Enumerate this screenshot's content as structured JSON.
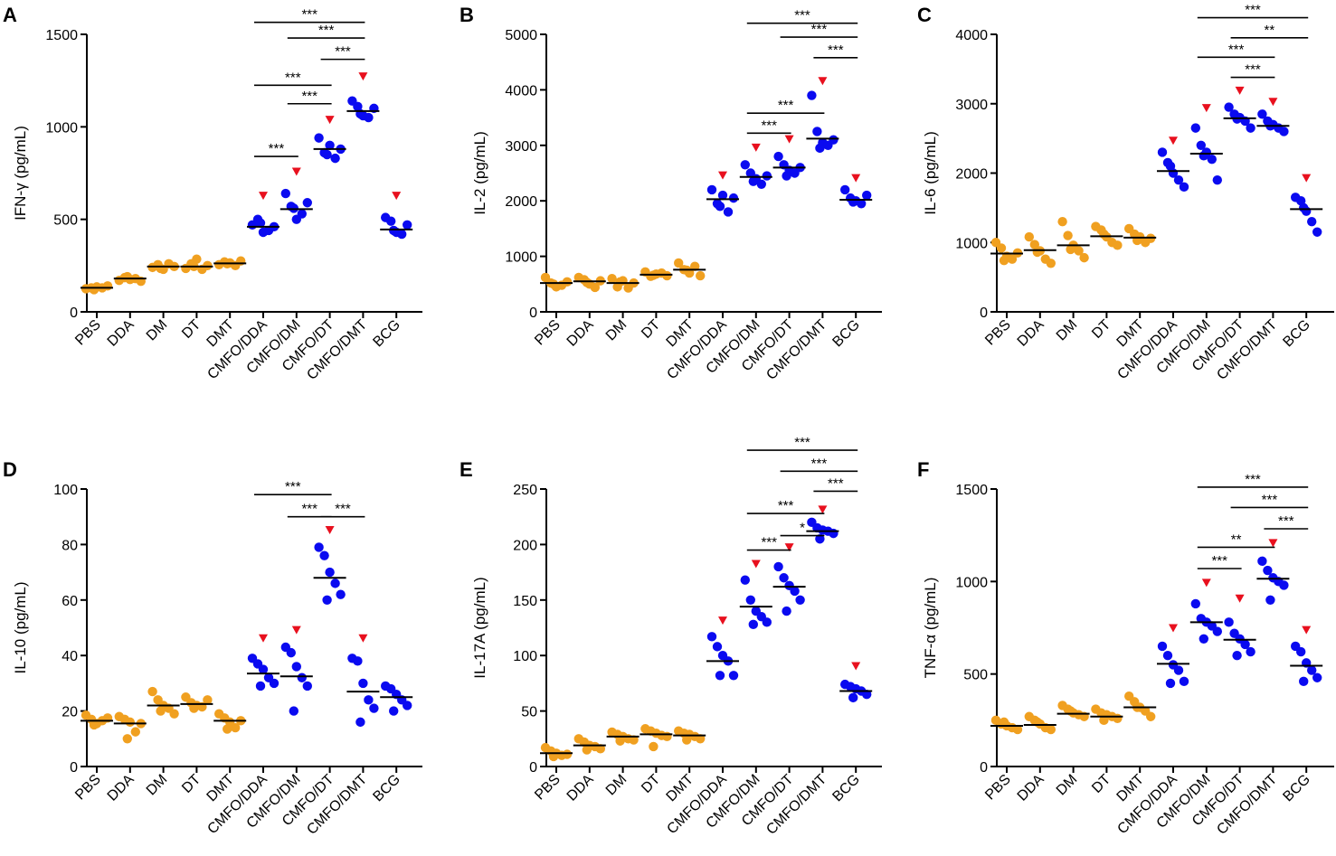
{
  "colors": {
    "adjuvant_only": "#F0A020",
    "vaccine": "#0A0AF0",
    "marker": "#E8101E",
    "axis": "#000000"
  },
  "chart_data": [
    {
      "type": "scatter",
      "panel": "A",
      "ylabel": "IFN-γ (pg/mL)",
      "ylim": [
        0,
        1500
      ],
      "yticks": [
        0,
        500,
        1000,
        1500
      ],
      "categories": [
        "PBS",
        "DDA",
        "DM",
        "DT",
        "DMT",
        "CMFO/DDA",
        "CMFO/DM",
        "CMFO/DT",
        "CMFO/DMT",
        "BCG"
      ],
      "points": [
        [
          125,
          130,
          135,
          130,
          140,
          120
        ],
        [
          170,
          185,
          175,
          180,
          165,
          190
        ],
        [
          240,
          255,
          230,
          260,
          245,
          235
        ],
        [
          235,
          260,
          285,
          230,
          250,
          245
        ],
        [
          255,
          270,
          265,
          250,
          275,
          260
        ],
        [
          470,
          500,
          430,
          440,
          460,
          480
        ],
        [
          640,
          570,
          500,
          530,
          590,
          560
        ],
        [
          940,
          860,
          900,
          830,
          880,
          850
        ],
        [
          1140,
          1110,
          1060,
          1050,
          1100,
          1070
        ],
        [
          510,
          490,
          430,
          420,
          470,
          440
        ]
      ],
      "medians": [
        130,
        180,
        245,
        245,
        262,
        460,
        555,
        880,
        1085,
        445
      ],
      "markers": [
        5,
        6,
        7,
        8,
        9
      ],
      "marker_values": [
        625,
        755,
        1035,
        1270,
        625
      ],
      "significance": [
        {
          "from": 5,
          "to": 8,
          "y": 1565,
          "label": "***"
        },
        {
          "from": 6,
          "to": 8,
          "y": 1480,
          "label": "***"
        },
        {
          "from": 7,
          "to": 8,
          "y": 1365,
          "label": "***"
        },
        {
          "from": 5,
          "to": 7,
          "y": 1225,
          "label": "***"
        },
        {
          "from": 6,
          "to": 7,
          "y": 1125,
          "label": "***"
        },
        {
          "from": 5,
          "to": 6,
          "y": 840,
          "label": "***"
        }
      ]
    },
    {
      "type": "scatter",
      "panel": "B",
      "ylabel": "IL-2 (pg/mL)",
      "ylim": [
        0,
        5000
      ],
      "yticks": [
        0,
        1000,
        2000,
        3000,
        4000,
        5000
      ],
      "categories": [
        "PBS",
        "DDA",
        "DM",
        "DT",
        "DMT",
        "CMFO/DDA",
        "CMFO/DM",
        "CMFO/DT",
        "CMFO/DMT",
        "BCG"
      ],
      "points": [
        [
          620,
          520,
          450,
          480,
          540,
          500
        ],
        [
          620,
          580,
          500,
          440,
          560,
          530
        ],
        [
          600,
          450,
          560,
          430,
          520,
          540
        ],
        [
          720,
          640,
          680,
          700,
          650,
          660
        ],
        [
          880,
          760,
          700,
          820,
          650,
          750
        ],
        [
          2200,
          1950,
          2100,
          1800,
          2050,
          1900
        ],
        [
          2650,
          2500,
          2400,
          2300,
          2450,
          2350
        ],
        [
          2800,
          2650,
          2550,
          2500,
          2600,
          2450
        ],
        [
          3900,
          3250,
          3050,
          3000,
          3100,
          2950
        ],
        [
          2200,
          2050,
          2000,
          1950,
          2100,
          1980
        ]
      ],
      "medians": [
        520,
        550,
        520,
        670,
        760,
        2030,
        2430,
        2600,
        3120,
        2020
      ],
      "markers": [
        5,
        6,
        7,
        8,
        9
      ],
      "marker_values": [
        2450,
        2950,
        3100,
        4150,
        2400
      ],
      "significance": [
        {
          "from": 6,
          "to": 9,
          "y": 5200,
          "label": "***"
        },
        {
          "from": 7,
          "to": 9,
          "y": 4950,
          "label": "***"
        },
        {
          "from": 8,
          "to": 9,
          "y": 4580,
          "label": "***"
        },
        {
          "from": 6,
          "to": 8,
          "y": 3580,
          "label": "***"
        },
        {
          "from": 6,
          "to": 7,
          "y": 3220,
          "label": "***"
        }
      ]
    },
    {
      "type": "scatter",
      "panel": "C",
      "ylabel": "IL-6 (pg/mL)",
      "ylim": [
        0,
        4000
      ],
      "yticks": [
        0,
        1000,
        2000,
        3000,
        4000
      ],
      "categories": [
        "PBS",
        "DDA",
        "DM",
        "DT",
        "DMT",
        "CMFO/DDA",
        "CMFO/DM",
        "CMFO/DT",
        "CMFO/DMT",
        "BCG"
      ],
      "points": [
        [
          1000,
          920,
          800,
          760,
          850,
          740
        ],
        [
          1080,
          970,
          880,
          760,
          700,
          860
        ],
        [
          1300,
          1100,
          960,
          880,
          780,
          900
        ],
        [
          1230,
          1180,
          1080,
          1000,
          960,
          1120
        ],
        [
          1200,
          1120,
          1080,
          1000,
          1060,
          1030
        ],
        [
          2300,
          2150,
          2000,
          1900,
          1800,
          2100
        ],
        [
          2650,
          2400,
          2300,
          2200,
          1900,
          2250
        ],
        [
          2950,
          2850,
          2800,
          2750,
          2650,
          2780
        ],
        [
          2850,
          2750,
          2700,
          2650,
          2600,
          2680
        ],
        [
          1650,
          1600,
          1450,
          1300,
          1150,
          1500
        ]
      ],
      "medians": [
        840,
        890,
        960,
        1090,
        1070,
        2030,
        2280,
        2790,
        2680,
        1480
      ],
      "markers": [
        5,
        6,
        7,
        8,
        9
      ],
      "marker_values": [
        2460,
        2930,
        3180,
        3020,
        1920
      ],
      "significance": [
        {
          "from": 6,
          "to": 9,
          "y": 4240,
          "label": "***"
        },
        {
          "from": 7,
          "to": 9,
          "y": 3950,
          "label": "**"
        },
        {
          "from": 6,
          "to": 8,
          "y": 3670,
          "label": "***"
        },
        {
          "from": 7,
          "to": 8,
          "y": 3380,
          "label": "***"
        }
      ]
    },
    {
      "type": "scatter",
      "panel": "D",
      "ylabel": "IL-10 (pg/mL)",
      "ylim": [
        0,
        100
      ],
      "yticks": [
        0,
        20,
        40,
        60,
        80,
        100
      ],
      "categories": [
        "PBS",
        "DDA",
        "DM",
        "DT",
        "DMT",
        "CMFO/DDA",
        "CMFO/DM",
        "CMFO/DT",
        "CMFO/DMT",
        "BCG"
      ],
      "points": [
        [
          18.5,
          17,
          15.5,
          16.5,
          17.5,
          15
        ],
        [
          18,
          17,
          16,
          12.5,
          15.5,
          10
        ],
        [
          27,
          24,
          22,
          21,
          19,
          20
        ],
        [
          25,
          23,
          22,
          21.5,
          24,
          21
        ],
        [
          19,
          17.5,
          16,
          14,
          16.5,
          13.5
        ],
        [
          39,
          37,
          35,
          32,
          30,
          29
        ],
        [
          43,
          41,
          36,
          32,
          29,
          20
        ],
        [
          79,
          76,
          70,
          66,
          62,
          60
        ],
        [
          39,
          38,
          30,
          24,
          21,
          16
        ],
        [
          29,
          28,
          26,
          24,
          22,
          20
        ]
      ],
      "medians": [
        16.5,
        15.5,
        22,
        22.5,
        16.5,
        33.5,
        32.5,
        68,
        27,
        25
      ],
      "markers": [
        5,
        6,
        7,
        8
      ],
      "marker_values": [
        46,
        49,
        85,
        46
      ],
      "significance": [
        {
          "from": 5,
          "to": 7,
          "y": 98,
          "label": "***"
        },
        {
          "from": 6,
          "to": 7,
          "y": 90,
          "label": "***"
        },
        {
          "from": 7,
          "to": 8,
          "y": 90,
          "label": "***"
        }
      ]
    },
    {
      "type": "scatter",
      "panel": "E",
      "ylabel": "IL-17A (pg/mL)",
      "ylim": [
        0,
        250
      ],
      "yticks": [
        0,
        50,
        100,
        150,
        200,
        250
      ],
      "categories": [
        "PBS",
        "DDA",
        "DM",
        "DT",
        "DMT",
        "CMFO/DDA",
        "CMFO/DM",
        "CMFO/DT",
        "CMFO/DMT",
        "BCG"
      ],
      "points": [
        [
          17,
          14,
          12,
          10,
          11,
          9
        ],
        [
          25,
          22,
          19,
          18,
          16,
          15
        ],
        [
          31,
          29,
          27,
          25,
          24,
          23
        ],
        [
          34,
          32,
          30,
          28,
          27,
          18
        ],
        [
          32,
          30,
          29,
          27,
          25,
          24
        ],
        [
          117,
          108,
          100,
          95,
          82,
          82
        ],
        [
          168,
          150,
          140,
          135,
          130,
          128
        ],
        [
          180,
          170,
          163,
          158,
          150,
          140
        ],
        [
          220,
          215,
          213,
          212,
          210,
          205
        ],
        [
          74,
          72,
          70,
          68,
          65,
          62
        ]
      ],
      "medians": [
        12,
        19,
        27,
        29,
        28,
        95,
        144,
        162,
        212,
        68
      ],
      "markers": [
        5,
        6,
        7,
        8,
        9
      ],
      "marker_values": [
        131,
        182,
        197,
        231,
        90
      ],
      "significance": [
        {
          "from": 6,
          "to": 9,
          "y": 285,
          "label": "***"
        },
        {
          "from": 7,
          "to": 9,
          "y": 266,
          "label": "***"
        },
        {
          "from": 8,
          "to": 9,
          "y": 248,
          "label": "***"
        },
        {
          "from": 6,
          "to": 8,
          "y": 228,
          "label": "***"
        },
        {
          "from": 7,
          "to": 8,
          "y": 208,
          "label": "*"
        },
        {
          "from": 6,
          "to": 7,
          "y": 195,
          "label": "***"
        }
      ]
    },
    {
      "type": "scatter",
      "panel": "F",
      "ylabel": "TNF-α (pg/mL)",
      "ylim": [
        0,
        1500
      ],
      "yticks": [
        0,
        500,
        1000,
        1500
      ],
      "categories": [
        "PBS",
        "DDA",
        "DM",
        "DT",
        "DMT",
        "CMFO/DDA",
        "CMFO/DM",
        "CMFO/DT",
        "CMFO/DMT",
        "BCG"
      ],
      "points": [
        [
          250,
          230,
          220,
          210,
          200,
          240
        ],
        [
          270,
          250,
          230,
          210,
          200,
          240
        ],
        [
          330,
          310,
          290,
          280,
          270,
          300
        ],
        [
          310,
          290,
          280,
          270,
          260,
          250
        ],
        [
          380,
          350,
          320,
          300,
          270,
          320
        ],
        [
          650,
          600,
          550,
          520,
          460,
          450
        ],
        [
          880,
          800,
          780,
          760,
          730,
          690
        ],
        [
          780,
          720,
          690,
          660,
          620,
          600
        ],
        [
          1110,
          1060,
          1020,
          1000,
          980,
          900
        ],
        [
          650,
          620,
          560,
          520,
          480,
          460
        ]
      ],
      "medians": [
        220,
        225,
        285,
        270,
        320,
        555,
        780,
        685,
        1015,
        545
      ],
      "markers": [
        5,
        6,
        7,
        8,
        9
      ],
      "marker_values": [
        745,
        990,
        905,
        1205,
        735
      ],
      "significance": [
        {
          "from": 6,
          "to": 9,
          "y": 1510,
          "label": "***"
        },
        {
          "from": 7,
          "to": 9,
          "y": 1400,
          "label": "***"
        },
        {
          "from": 8,
          "to": 9,
          "y": 1285,
          "label": "***"
        },
        {
          "from": 6,
          "to": 8,
          "y": 1185,
          "label": "**"
        },
        {
          "from": 6,
          "to": 7,
          "y": 1070,
          "label": "***"
        }
      ]
    }
  ]
}
